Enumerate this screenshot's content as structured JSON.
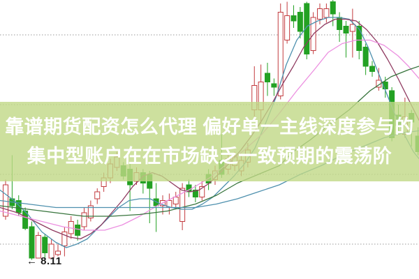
{
  "banner": {
    "line1": "靠谱期货配资怎么代理 偏好单一主线深度参与的",
    "line2": "集中型账户在在市场缺乏一致预期的震荡阶",
    "background_color": "#c1d886",
    "background_opacity": 0.8,
    "text_color": "#ffffff"
  },
  "chart_data": {
    "type": "candlestick",
    "title": "",
    "xlabel": "",
    "ylabel": "",
    "grid": "dotted-horizontal",
    "grid_color": "#9a9a9a",
    "up_color": "#c23a3e",
    "down_color": "#23a123",
    "up_fill": "#ffffff",
    "y_axis": {
      "min": 8.0,
      "max": 9.6,
      "gridlines": [
        8.2,
        8.6,
        9.0,
        9.4
      ]
    },
    "annotation": {
      "text": "← 8.11",
      "price": 8.11
    },
    "candles": [
      [
        8.36,
        8.57,
        8.34,
        8.54
      ],
      [
        8.46,
        8.71,
        8.4,
        8.42
      ],
      [
        8.45,
        8.48,
        8.36,
        8.38
      ],
      [
        8.39,
        8.41,
        8.28,
        8.29
      ],
      [
        8.3,
        8.33,
        8.11,
        8.12
      ],
      [
        8.12,
        8.27,
        8.12,
        8.25
      ],
      [
        8.24,
        8.26,
        8.12,
        8.15
      ],
      [
        8.12,
        8.23,
        8.12,
        8.2
      ],
      [
        8.14,
        8.2,
        8.13,
        8.16
      ],
      [
        8.19,
        8.3,
        8.13,
        8.27
      ],
      [
        8.26,
        8.36,
        8.23,
        8.33
      ],
      [
        8.31,
        8.34,
        8.22,
        8.25
      ],
      [
        8.3,
        8.41,
        8.28,
        8.38
      ],
      [
        8.35,
        8.45,
        8.33,
        8.42
      ],
      [
        8.46,
        8.52,
        8.43,
        8.5
      ],
      [
        8.53,
        8.61,
        8.5,
        8.58
      ],
      [
        8.58,
        8.69,
        8.55,
        8.66
      ],
      [
        8.64,
        8.73,
        8.62,
        8.7
      ],
      [
        8.65,
        8.67,
        8.57,
        8.59
      ],
      [
        8.63,
        8.66,
        8.39,
        8.54
      ],
      [
        8.56,
        8.64,
        8.54,
        8.61
      ],
      [
        8.61,
        8.63,
        8.49,
        8.55
      ],
      [
        8.6,
        8.62,
        8.32,
        8.52
      ],
      [
        8.46,
        8.55,
        8.27,
        8.42
      ],
      [
        8.42,
        8.48,
        8.37,
        8.45
      ],
      [
        8.41,
        8.49,
        8.37,
        8.45
      ],
      [
        8.43,
        8.5,
        8.4,
        8.47
      ],
      [
        8.33,
        8.55,
        8.28,
        8.52
      ],
      [
        8.54,
        8.57,
        8.47,
        8.5
      ],
      [
        8.51,
        8.54,
        8.44,
        8.47
      ],
      [
        8.47,
        8.56,
        8.45,
        8.53
      ],
      [
        8.6,
        8.63,
        8.51,
        8.55
      ],
      [
        8.57,
        8.65,
        8.54,
        8.62
      ],
      [
        8.68,
        8.83,
        8.58,
        8.6
      ],
      [
        8.63,
        8.72,
        8.6,
        8.69
      ],
      [
        8.65,
        8.73,
        8.62,
        8.7
      ],
      [
        8.62,
        8.71,
        8.59,
        8.68
      ],
      [
        8.67,
        8.78,
        8.64,
        8.74
      ],
      [
        8.97,
        9.22,
        8.91,
        9.11
      ],
      [
        8.97,
        9.23,
        8.89,
        9.13
      ],
      [
        9.18,
        9.24,
        9.05,
        9.13
      ],
      [
        9.12,
        9.15,
        9.05,
        9.1
      ],
      [
        9.05,
        9.58,
        9.03,
        9.53
      ],
      [
        9.37,
        9.59,
        9.35,
        9.51
      ],
      [
        9.51,
        9.57,
        9.44,
        9.48
      ],
      [
        9.53,
        9.56,
        9.38,
        9.42
      ],
      [
        9.58,
        9.59,
        9.26,
        9.29
      ],
      [
        9.31,
        9.53,
        9.29,
        9.5
      ],
      [
        9.49,
        9.58,
        9.46,
        9.55
      ],
      [
        9.5,
        9.58,
        9.47,
        9.55
      ],
      [
        9.59,
        9.6,
        9.45,
        9.52
      ],
      [
        9.5,
        9.53,
        9.36,
        9.43
      ],
      [
        9.45,
        9.48,
        9.27,
        9.41
      ],
      [
        9.42,
        9.55,
        9.27,
        9.46
      ],
      [
        9.45,
        9.48,
        9.26,
        9.31
      ],
      [
        9.33,
        9.35,
        9.17,
        9.22
      ],
      [
        9.22,
        9.25,
        9.16,
        9.19
      ],
      [
        9.1,
        9.21,
        9.08,
        9.14
      ],
      [
        9.13,
        9.16,
        9.04,
        9.09
      ],
      [
        9.08,
        9.1,
        8.79,
        8.81
      ],
      [
        8.94,
        9.0,
        8.85,
        8.88
      ],
      [
        8.83,
        9.04,
        8.81,
        8.93
      ],
      [
        8.95,
        8.97,
        8.76,
        8.9
      ],
      [
        8.82,
        8.87,
        8.71,
        8.73
      ]
    ],
    "ma_lines": [
      {
        "name": "ma-fast-blue",
        "color": "#4e90ae",
        "points": [
          [
            0,
            8.51
          ],
          [
            20,
            8.45
          ],
          [
            40,
            8.37
          ],
          [
            60,
            8.27
          ],
          [
            80,
            8.21
          ],
          [
            95,
            8.18
          ],
          [
            110,
            8.2
          ],
          [
            125,
            8.23
          ],
          [
            140,
            8.29
          ],
          [
            155,
            8.35
          ],
          [
            170,
            8.41
          ],
          [
            185,
            8.45
          ],
          [
            200,
            8.46
          ],
          [
            215,
            8.46
          ],
          [
            230,
            8.43
          ],
          [
            245,
            8.41
          ],
          [
            260,
            8.4
          ],
          [
            275,
            8.4
          ],
          [
            290,
            8.43
          ],
          [
            305,
            8.47
          ],
          [
            320,
            8.53
          ],
          [
            335,
            8.59
          ],
          [
            350,
            8.66
          ],
          [
            365,
            8.75
          ],
          [
            380,
            8.89
          ],
          [
            395,
            9.04
          ],
          [
            410,
            9.23
          ],
          [
            425,
            9.37
          ],
          [
            440,
            9.45
          ],
          [
            455,
            9.48
          ],
          [
            470,
            9.5
          ],
          [
            485,
            9.5
          ],
          [
            500,
            9.49
          ],
          [
            515,
            9.43
          ],
          [
            527,
            9.33
          ],
          [
            540,
            9.2
          ],
          [
            553,
            9.07
          ],
          [
            566,
            8.94
          ],
          [
            580,
            8.82
          ],
          [
            592,
            8.73
          ],
          [
            600,
            8.69
          ]
        ]
      },
      {
        "name": "ma-maroon",
        "color": "#8f3a60",
        "points": [
          [
            0,
            8.41
          ],
          [
            25,
            8.38
          ],
          [
            50,
            8.33
          ],
          [
            75,
            8.28
          ],
          [
            100,
            8.24
          ],
          [
            115,
            8.23
          ],
          [
            130,
            8.26
          ],
          [
            145,
            8.31
          ],
          [
            160,
            8.38
          ],
          [
            175,
            8.45
          ],
          [
            190,
            8.53
          ],
          [
            205,
            8.59
          ],
          [
            218,
            8.61
          ],
          [
            232,
            8.59
          ],
          [
            246,
            8.55
          ],
          [
            260,
            8.51
          ],
          [
            272,
            8.5
          ],
          [
            285,
            8.51
          ],
          [
            300,
            8.55
          ],
          [
            315,
            8.61
          ],
          [
            330,
            8.67
          ],
          [
            345,
            8.74
          ],
          [
            360,
            8.82
          ],
          [
            375,
            8.91
          ],
          [
            390,
            9.01
          ],
          [
            405,
            9.12
          ],
          [
            420,
            9.22
          ],
          [
            435,
            9.33
          ],
          [
            450,
            9.41
          ],
          [
            465,
            9.46
          ],
          [
            480,
            9.49
          ],
          [
            495,
            9.49
          ],
          [
            510,
            9.48
          ],
          [
            525,
            9.43
          ],
          [
            540,
            9.36
          ],
          [
            555,
            9.26
          ],
          [
            570,
            9.15
          ],
          [
            585,
            9.03
          ],
          [
            600,
            8.91
          ]
        ]
      },
      {
        "name": "ma-pink",
        "color": "#ec8fe0",
        "points": [
          [
            0,
            8.39
          ],
          [
            30,
            8.36
          ],
          [
            60,
            8.33
          ],
          [
            90,
            8.3
          ],
          [
            120,
            8.28
          ],
          [
            150,
            8.28
          ],
          [
            175,
            8.31
          ],
          [
            200,
            8.36
          ],
          [
            225,
            8.42
          ],
          [
            250,
            8.47
          ],
          [
            275,
            8.52
          ],
          [
            300,
            8.58
          ],
          [
            325,
            8.66
          ],
          [
            350,
            8.74
          ],
          [
            375,
            8.83
          ],
          [
            400,
            8.95
          ],
          [
            425,
            9.08
          ],
          [
            450,
            9.2
          ],
          [
            470,
            9.3
          ],
          [
            490,
            9.35
          ],
          [
            510,
            9.37
          ],
          [
            530,
            9.37
          ],
          [
            550,
            9.34
          ],
          [
            570,
            9.28
          ],
          [
            585,
            9.22
          ],
          [
            600,
            9.15
          ]
        ]
      },
      {
        "name": "ma-dark-green",
        "color": "#37743c",
        "points": [
          [
            0,
            8.42
          ],
          [
            40,
            8.4
          ],
          [
            80,
            8.38
          ],
          [
            120,
            8.36
          ],
          [
            160,
            8.36
          ],
          [
            200,
            8.37
          ],
          [
            240,
            8.39
          ],
          [
            280,
            8.43
          ],
          [
            310,
            8.48
          ],
          [
            340,
            8.55
          ],
          [
            370,
            8.6
          ],
          [
            400,
            8.65
          ],
          [
            420,
            8.73
          ],
          [
            445,
            8.8
          ],
          [
            470,
            8.88
          ],
          [
            500,
            8.97
          ],
          [
            530,
            9.08
          ],
          [
            560,
            9.16
          ],
          [
            585,
            9.2
          ],
          [
            600,
            9.22
          ]
        ]
      },
      {
        "name": "ma-slow-blue",
        "color": "#4e90ae",
        "points": [
          [
            0,
            8.45
          ],
          [
            40,
            8.43
          ],
          [
            80,
            8.41
          ],
          [
            120,
            8.41
          ],
          [
            160,
            8.41
          ],
          [
            200,
            8.41
          ],
          [
            240,
            8.41
          ],
          [
            280,
            8.41
          ],
          [
            310,
            8.43
          ],
          [
            340,
            8.46
          ],
          [
            370,
            8.5
          ],
          [
            400,
            8.54
          ],
          [
            430,
            8.6
          ],
          [
            460,
            8.65
          ],
          [
            490,
            8.71
          ],
          [
            520,
            8.76
          ],
          [
            550,
            8.81
          ],
          [
            580,
            8.84
          ],
          [
            600,
            8.85
          ]
        ]
      }
    ]
  }
}
